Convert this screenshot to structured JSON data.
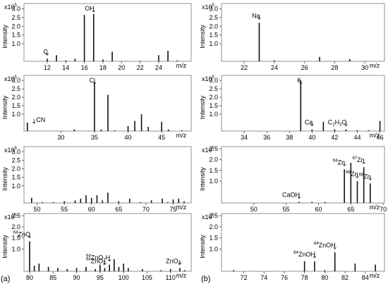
{
  "figure": {
    "labels": [
      "(a)",
      "(b)"
    ]
  },
  "chart_data": [
    {
      "id": "a1",
      "type": "bar",
      "xlim": [
        9.5,
        27.5
      ],
      "ylim": [
        0,
        3.3
      ],
      "ylabel": "Intensity",
      "yscale_label": "x10",
      "yscale_exp": "5",
      "xlabel": "m/z",
      "xticks": [
        12,
        14,
        16,
        18,
        20,
        22,
        24
      ],
      "yticks": [
        1.0,
        1.5,
        2.0,
        2.5,
        3.0
      ],
      "x": [
        12,
        13,
        14,
        15,
        16,
        17,
        18,
        19,
        22,
        24,
        25,
        26
      ],
      "y": [
        0.15,
        0.35,
        0.05,
        0.15,
        2.65,
        2.7,
        0.1,
        0.55,
        0.02,
        0.35,
        0.6,
        0.05
      ],
      "annotations": [
        {
          "text": "C",
          "x": 12
        },
        {
          "text": "OH",
          "x": 17
        }
      ]
    },
    {
      "id": "b1",
      "type": "bar",
      "xlim": [
        20.5,
        31.3
      ],
      "ylim": [
        0,
        3.3
      ],
      "ylabel": "Intensity",
      "yscale_label": "x10",
      "yscale_exp": "5",
      "xlabel": "m/z",
      "xticks": [
        22,
        24,
        26,
        28,
        30
      ],
      "yticks": [
        1.0,
        1.5,
        2.0,
        2.5,
        3.0
      ],
      "x": [
        23,
        24,
        27,
        29
      ],
      "y": [
        2.2,
        0.05,
        0.25,
        0.12
      ],
      "annotations": [
        {
          "text": "Na",
          "x": 23
        }
      ]
    },
    {
      "id": "a2",
      "type": "bar",
      "xlim": [
        24.5,
        49.4
      ],
      "ylim": [
        0,
        3.3
      ],
      "ylabel": "Intensity",
      "yscale_label": "x10",
      "yscale_exp": "5",
      "xlabel": "m/z",
      "xticks": [
        30,
        35,
        40,
        45
      ],
      "yticks": [
        1.0,
        1.5,
        2.0,
        2.5,
        3.0
      ],
      "x": [
        25,
        32,
        35,
        36,
        37,
        38,
        40,
        41,
        42,
        43,
        45,
        46,
        48
      ],
      "y": [
        0.5,
        0.1,
        2.9,
        0.1,
        2.15,
        0.05,
        0.3,
        0.6,
        1.0,
        0.25,
        0.55,
        0.1,
        0.05
      ],
      "annotations": [
        {
          "text": "CN",
          "x": 26
        },
        {
          "text": "Cl",
          "x": 35
        }
      ]
    },
    {
      "id": "b2",
      "type": "bar",
      "xlim": [
        32.0,
        46.4
      ],
      "ylim": [
        0,
        3.3
      ],
      "ylabel": "Intensity",
      "yscale_label": "x10",
      "yscale_exp": "5",
      "xlabel": "m/z",
      "xticks": [
        34,
        36,
        38,
        40,
        42,
        44,
        46
      ],
      "yticks": [
        1.0,
        1.5,
        2.0,
        2.5,
        3.0
      ],
      "x": [
        39,
        40,
        41,
        42,
        43,
        44,
        45,
        46
      ],
      "y": [
        3.0,
        0.1,
        0.55,
        0.1,
        0.1,
        0.05,
        0.05,
        0.6
      ],
      "annotations": [
        {
          "text": "K",
          "x": 39
        },
        {
          "text": "Ca",
          "x": 40
        },
        {
          "text": "C2H3O",
          "x": 43
        }
      ]
    },
    {
      "id": "a3",
      "type": "bar",
      "xlim": [
        47.6,
        78.3
      ],
      "ylim": [
        0,
        3.3
      ],
      "ylabel": "Intensity",
      "yscale_label": "x10",
      "yscale_exp": "5",
      "xlabel": "m/z",
      "xticks": [
        50,
        55,
        60,
        65,
        70,
        75
      ],
      "yticks": [
        1.0,
        1.5,
        2.0,
        2.5,
        3.0
      ],
      "x": [
        49,
        51,
        53,
        55,
        57,
        58,
        59,
        60,
        61,
        62,
        63,
        65,
        67,
        69,
        71,
        73,
        74,
        75,
        76,
        77
      ],
      "y": [
        0.3,
        0.05,
        0.05,
        0.1,
        0.15,
        0.25,
        0.45,
        0.3,
        0.45,
        0.15,
        0.6,
        0.1,
        0.25,
        0.05,
        0.15,
        0.25,
        0.05,
        0.2,
        0.25,
        0.1
      ]
    },
    {
      "id": "b3",
      "type": "bar",
      "xlim": [
        45.0,
        70.2
      ],
      "ylim": [
        0,
        2.6
      ],
      "ylabel": "Intensity",
      "yscale_label": "x10",
      "yscale_exp": "5",
      "xlabel": "m/z",
      "xticks": [
        50,
        55,
        60,
        65,
        70
      ],
      "yticks": [
        1.0,
        1.5,
        2.0,
        2.5
      ],
      "x": [
        57,
        59,
        61,
        64,
        65,
        66,
        67,
        68
      ],
      "y": [
        0.05,
        0.05,
        0.05,
        1.55,
        1.85,
        1.0,
        1.65,
        0.9
      ],
      "annotations": [
        {
          "text": "CaOH",
          "x": 57
        },
        {
          "text": "Zn",
          "mass": "64",
          "x": 64
        },
        {
          "text": "Zn",
          "mass": "66",
          "x": 66
        },
        {
          "text": "Zn",
          "mass": "67",
          "x": 67
        },
        {
          "text": "Zn",
          "mass": "68",
          "x": 68
        }
      ]
    },
    {
      "id": "a4",
      "type": "bar",
      "xlim": [
        78.8,
        114.4
      ],
      "ylim": [
        0,
        2.6
      ],
      "ylabel": "Intensity",
      "yscale_label": "x10",
      "yscale_exp": "5",
      "xlabel": "m/z",
      "xticks": [
        80,
        85,
        90,
        95,
        100,
        105,
        110
      ],
      "yticks": [
        1.0,
        1.5,
        2.0,
        2.5
      ],
      "x": [
        80,
        81,
        82,
        84,
        86,
        88,
        90,
        92,
        94,
        95,
        96,
        97,
        98,
        99,
        100,
        101,
        104,
        108,
        110,
        112,
        113
      ],
      "y": [
        1.35,
        0.25,
        0.35,
        0.2,
        0.15,
        0.1,
        0.15,
        0.2,
        0.1,
        0.3,
        0.15,
        0.3,
        0.55,
        0.2,
        0.35,
        0.15,
        0.1,
        0.05,
        0.1,
        0.15,
        0.05
      ],
      "annotations": [
        {
          "text": "ZnO",
          "mass": "64",
          "x": 80
        },
        {
          "text": "ZnO2",
          "mass": "64",
          "x": 96
        },
        {
          "text": "ZnO2H",
          "mass": "64",
          "x": 97
        },
        {
          "text": "ZnO3",
          "x": 112
        }
      ]
    },
    {
      "id": "b4",
      "type": "bar",
      "xlim": [
        69.8,
        85.9
      ],
      "ylim": [
        0,
        2.6
      ],
      "ylabel": "Intensity",
      "yscale_label": "x10",
      "yscale_exp": "5",
      "xlabel": "m/z",
      "xticks": [
        72,
        74,
        76,
        78,
        80,
        82,
        84
      ],
      "yticks": [
        1.0,
        1.5,
        2.0,
        2.5
      ],
      "x": [
        71,
        78,
        79,
        80,
        81,
        83,
        85
      ],
      "y": [
        0.05,
        0.45,
        0.45,
        0.05,
        0.85,
        0.35,
        0.3
      ],
      "annotations": [
        {
          "text": "ZnOH",
          "mass": "64",
          "x": 79
        },
        {
          "text": "ZnOH",
          "mass": "64",
          "x": 81
        }
      ]
    }
  ]
}
